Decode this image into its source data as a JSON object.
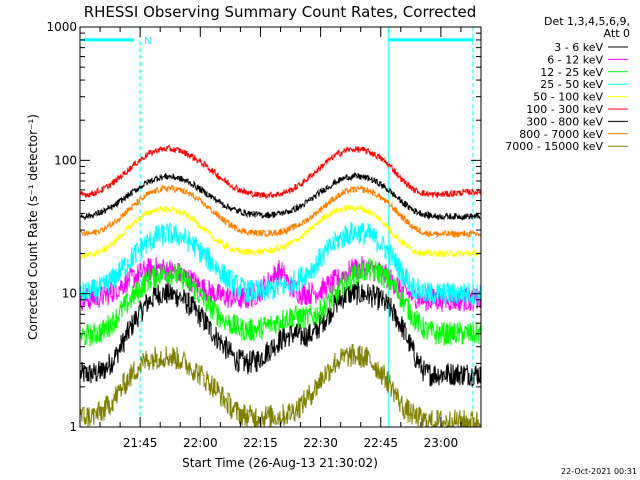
{
  "chart_data": {
    "type": "line",
    "title": "RHESSI Observing Summary Count Rates, Corrected",
    "xlabel": "Start Time (26-Aug-13 21:30:02)",
    "ylabel": "Corrected Count Rate (s⁻¹ detector⁻¹)",
    "yscale": "log",
    "ylim": [
      1,
      1000
    ],
    "xlim_minutes_after_start": [
      0,
      100
    ],
    "x_ticks": [
      {
        "label": "21:45",
        "minute": 15
      },
      {
        "label": "22:00",
        "minute": 30
      },
      {
        "label": "22:15",
        "minute": 45
      },
      {
        "label": "22:30",
        "minute": 60
      },
      {
        "label": "22:45",
        "minute": 75
      },
      {
        "label": "23:00",
        "minute": 90
      }
    ],
    "y_ticks": [
      {
        "label": "1",
        "value": 1
      },
      {
        "label": "10",
        "value": 10
      },
      {
        "label": "100",
        "value": 100
      },
      {
        "label": "1000",
        "value": 1000
      }
    ],
    "legend": {
      "placement": "right",
      "header": [
        "Det 1,3,4,5,6,9,",
        "Att 0"
      ]
    },
    "annotations": {
      "night_marker": "N",
      "night_start_minute": 15,
      "day_start_minute": 77,
      "day_end_minute": 98,
      "flag_level": 800
    },
    "series": [
      {
        "name": "3 - 6 keV",
        "color": "#000000",
        "values": [
          2.5,
          2.5,
          2.6,
          3.2,
          4.5,
          6.5,
          8.5,
          10,
          10,
          9.5,
          8,
          6.5,
          5,
          4,
          3.2,
          3,
          3.2,
          3.8,
          4.5,
          5,
          4.8,
          5,
          6.5,
          8.5,
          10,
          10,
          9.8,
          9,
          7.5,
          5.5,
          3.5,
          2.5,
          2.5,
          2.5,
          2.5,
          2.5,
          2.5
        ]
      },
      {
        "name": "6 - 12 keV",
        "color": "#ff00ff",
        "values": [
          9,
          9.2,
          9.5,
          10.5,
          12,
          13.5,
          15,
          15.5,
          15,
          14,
          12.5,
          11,
          10,
          9.5,
          9.2,
          9.2,
          10.2,
          12.5,
          15,
          11,
          10,
          10.2,
          11,
          12.5,
          14.5,
          15.5,
          15.5,
          14.5,
          12.5,
          10.5,
          9.5,
          9,
          9,
          9,
          9,
          9,
          9
        ]
      },
      {
        "name": "12 - 25 keV",
        "color": "#00ff00",
        "values": [
          4.8,
          4.9,
          5.2,
          6.2,
          8,
          10,
          12.5,
          14,
          14.5,
          13.5,
          11.5,
          9.2,
          7.5,
          6.3,
          5.6,
          5.3,
          5.4,
          5.8,
          6.3,
          6.8,
          6.6,
          6.8,
          8,
          10,
          12.5,
          14.5,
          15,
          14.2,
          12,
          9,
          6.5,
          5.3,
          5,
          5,
          5,
          5,
          5
        ]
      },
      {
        "name": "25 - 50 keV",
        "color": "#00ffff",
        "values": [
          10,
          10.3,
          11,
          13,
          16,
          20,
          24,
          27,
          28,
          27,
          24,
          20,
          16.5,
          13.5,
          11.5,
          10.5,
          10.3,
          10.6,
          11.2,
          12,
          13.5,
          16,
          20,
          24.5,
          28,
          29,
          27.5,
          24,
          19,
          14,
          11,
          10,
          10,
          10,
          10,
          10,
          10
        ]
      },
      {
        "name": "50 - 100 keV",
        "color": "#ffff00",
        "values": [
          19,
          19.5,
          21,
          24,
          29,
          35,
          40,
          43,
          43,
          41,
          37,
          31,
          26,
          23,
          21,
          20.5,
          20.5,
          21,
          22,
          24,
          27,
          32,
          38,
          42,
          44,
          44,
          41,
          36,
          29,
          24,
          21,
          20,
          20,
          20,
          20,
          20,
          20
        ]
      },
      {
        "name": "100 - 300 keV",
        "color": "#ff0000",
        "values": [
          55,
          56,
          60,
          68,
          80,
          95,
          110,
          120,
          122,
          118,
          108,
          95,
          82,
          70,
          62,
          57,
          55,
          55,
          56,
          60,
          68,
          80,
          95,
          110,
          120,
          121,
          116,
          104,
          88,
          70,
          60,
          56,
          55,
          56,
          57,
          58,
          58
        ]
      },
      {
        "name": "300 - 800 keV",
        "color": "#000000",
        "values": [
          38,
          38.5,
          41,
          45,
          52,
          60,
          68,
          74,
          76,
          73,
          67,
          59,
          52,
          46,
          42,
          40,
          39,
          39,
          40,
          42,
          46,
          53,
          61,
          69,
          75,
          76,
          73,
          66,
          57,
          48,
          42,
          39,
          38,
          38,
          38,
          38,
          38
        ]
      },
      {
        "name": "800 - 7000 keV",
        "color": "#ff7f00",
        "values": [
          28,
          28.3,
          30,
          34,
          40,
          47,
          55,
          60,
          62,
          60,
          55,
          48,
          41,
          35,
          31,
          29,
          28.5,
          28.5,
          29,
          31,
          34,
          39,
          46,
          53,
          59,
          61,
          59,
          53,
          45,
          37,
          31,
          28.5,
          28,
          28,
          28,
          28,
          28
        ]
      },
      {
        "name": "7000 - 15000 keV",
        "color": "#808000",
        "values": [
          1.2,
          1.2,
          1.3,
          1.6,
          2.1,
          2.7,
          3.2,
          3.4,
          3.4,
          3.2,
          2.8,
          2.4,
          2,
          1.6,
          1.3,
          1.2,
          1.2,
          1.2,
          1.2,
          1.3,
          1.5,
          1.9,
          2.5,
          3.1,
          3.4,
          3.4,
          3.2,
          2.6,
          2,
          1.4,
          1.2,
          1.1,
          1.1,
          1.1,
          1.1,
          1.1,
          1.1
        ]
      }
    ]
  },
  "footer": {
    "timestamp": "22-Oct-2021 00:31"
  },
  "colors": {
    "background": "#ffffff",
    "axes": "#000000",
    "flag_lines": "#00ffff"
  }
}
